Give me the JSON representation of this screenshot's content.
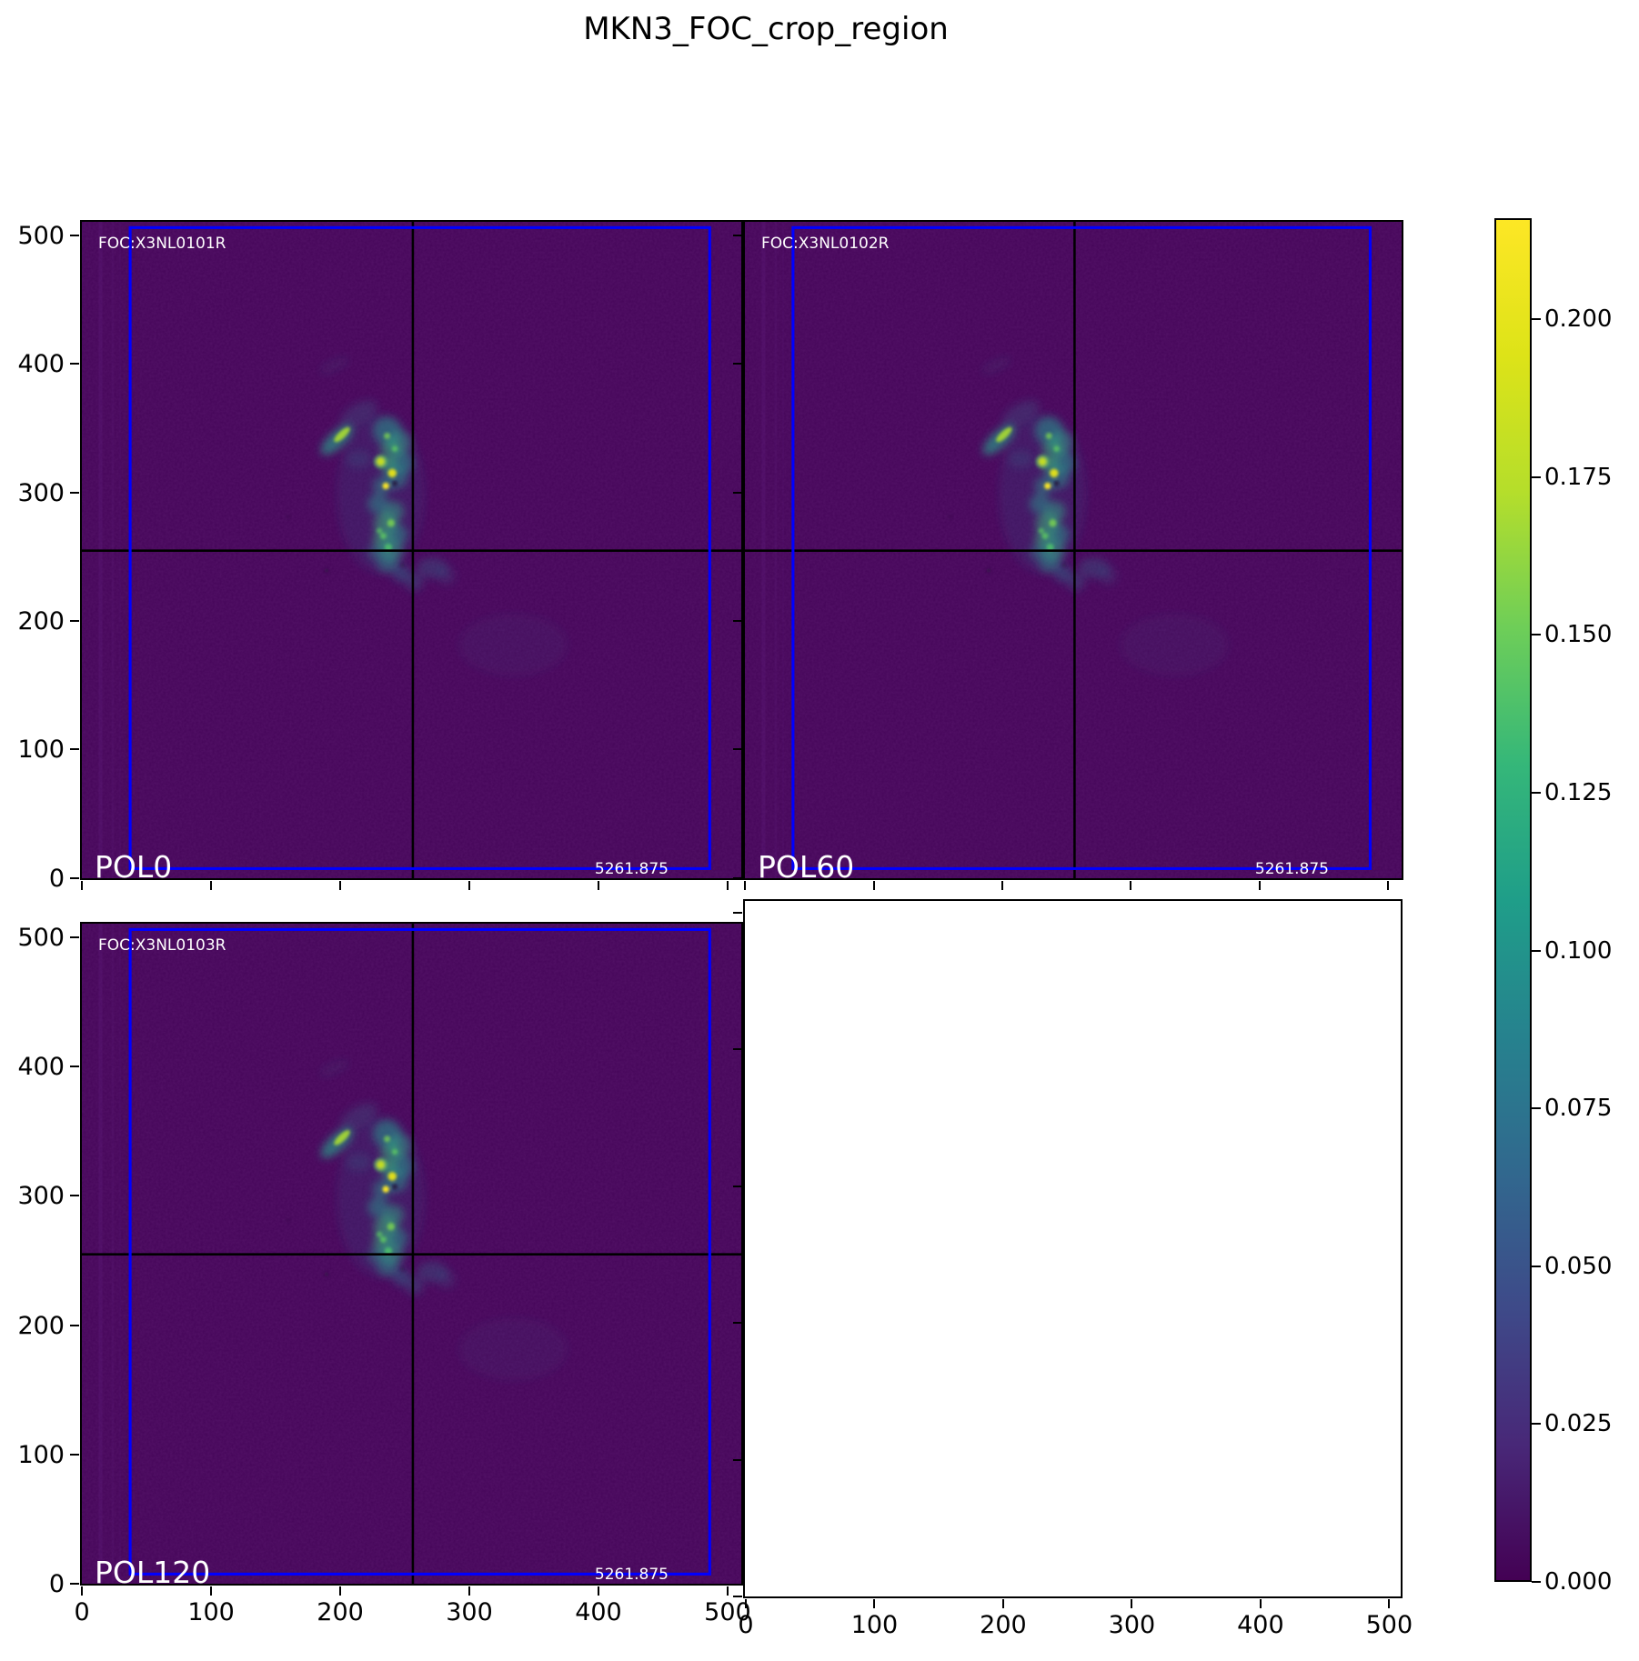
{
  "title": "MKN3_FOC_crop_region",
  "panels": [
    {
      "foc_label": "FOC:X3NL0101R",
      "pol_label": "POL0",
      "value_label": "5261.875"
    },
    {
      "foc_label": "FOC:X3NL0102R",
      "pol_label": "POL60",
      "value_label": "5261.875"
    },
    {
      "foc_label": "FOC:X3NL0103R",
      "pol_label": "POL120",
      "value_label": "5261.875"
    }
  ],
  "axes": {
    "tick_values": [
      0,
      100,
      200,
      300,
      400,
      500
    ],
    "tick_labels": [
      "0",
      "100",
      "200",
      "300",
      "400",
      "500"
    ]
  },
  "colorbar": {
    "tick_values": [
      0.0,
      0.025,
      0.05,
      0.075,
      0.1,
      0.125,
      0.15,
      0.175,
      0.2
    ],
    "tick_labels": [
      "0.000",
      "0.025",
      "0.050",
      "0.075",
      "0.100",
      "0.125",
      "0.150",
      "0.175",
      "0.200"
    ],
    "vmin": 0.0,
    "vmax_estimate": 0.216,
    "colormap": "viridis"
  },
  "colors": {
    "image_background": "#450559",
    "crop_box": "#0000ff",
    "crosshair": "#000000",
    "panel_text": "#ffffff",
    "peak_knot": "#fde725"
  },
  "chart_data": {
    "type": "heatmap",
    "title": "MKN3_FOC_crop_region",
    "layout": "2x2 grid of axes; three viridis image panels (POL0 top-left, POL60 top-right, POL120 bottom-left) sharing x/y; bottom-right axes empty/white; vertical colorbar at far right",
    "colormap": "viridis",
    "x_range": [
      0,
      512
    ],
    "y_range": [
      0,
      512
    ],
    "x_ticks": [
      0,
      100,
      200,
      300,
      400,
      500
    ],
    "y_ticks": [
      0,
      100,
      200,
      300,
      400,
      500
    ],
    "colorbar_ticks": [
      0.0,
      0.025,
      0.05,
      0.075,
      0.1,
      0.125,
      0.15,
      0.175,
      0.2
    ],
    "colorbar_range": [
      0.0,
      0.216
    ],
    "grid": false,
    "panels": [
      {
        "pol_angle": 0,
        "dataset_id": "X3NL0101R",
        "corner_value": 5261.875,
        "crop_box_data_coords": [
          37,
          8,
          487,
          508
        ],
        "crosshair_center": [
          256,
          256
        ],
        "emission": "clumpy reverse-S arc of bright knots spanning approx x 185-290, y 225-360; brightest knots ~0.19-0.216 near (236,306) and (241,316); elongated streak from (189,332) to (208,351)"
      },
      {
        "pol_angle": 60,
        "dataset_id": "X3NL0102R",
        "corner_value": 5261.875,
        "crop_box_data_coords": [
          37,
          8,
          487,
          508
        ],
        "crosshair_center": [
          256,
          256
        ],
        "emission": "same clumpy arc morphology as POL0 with faint wing extending right of crosshair below y=256"
      },
      {
        "pol_angle": 120,
        "dataset_id": "X3NL0103R",
        "corner_value": 5261.875,
        "crop_box_data_coords": [
          37,
          8,
          487,
          508
        ],
        "crosshair_center": [
          256,
          256
        ],
        "emission": "same clumpy arc morphology as POL0"
      }
    ]
  }
}
